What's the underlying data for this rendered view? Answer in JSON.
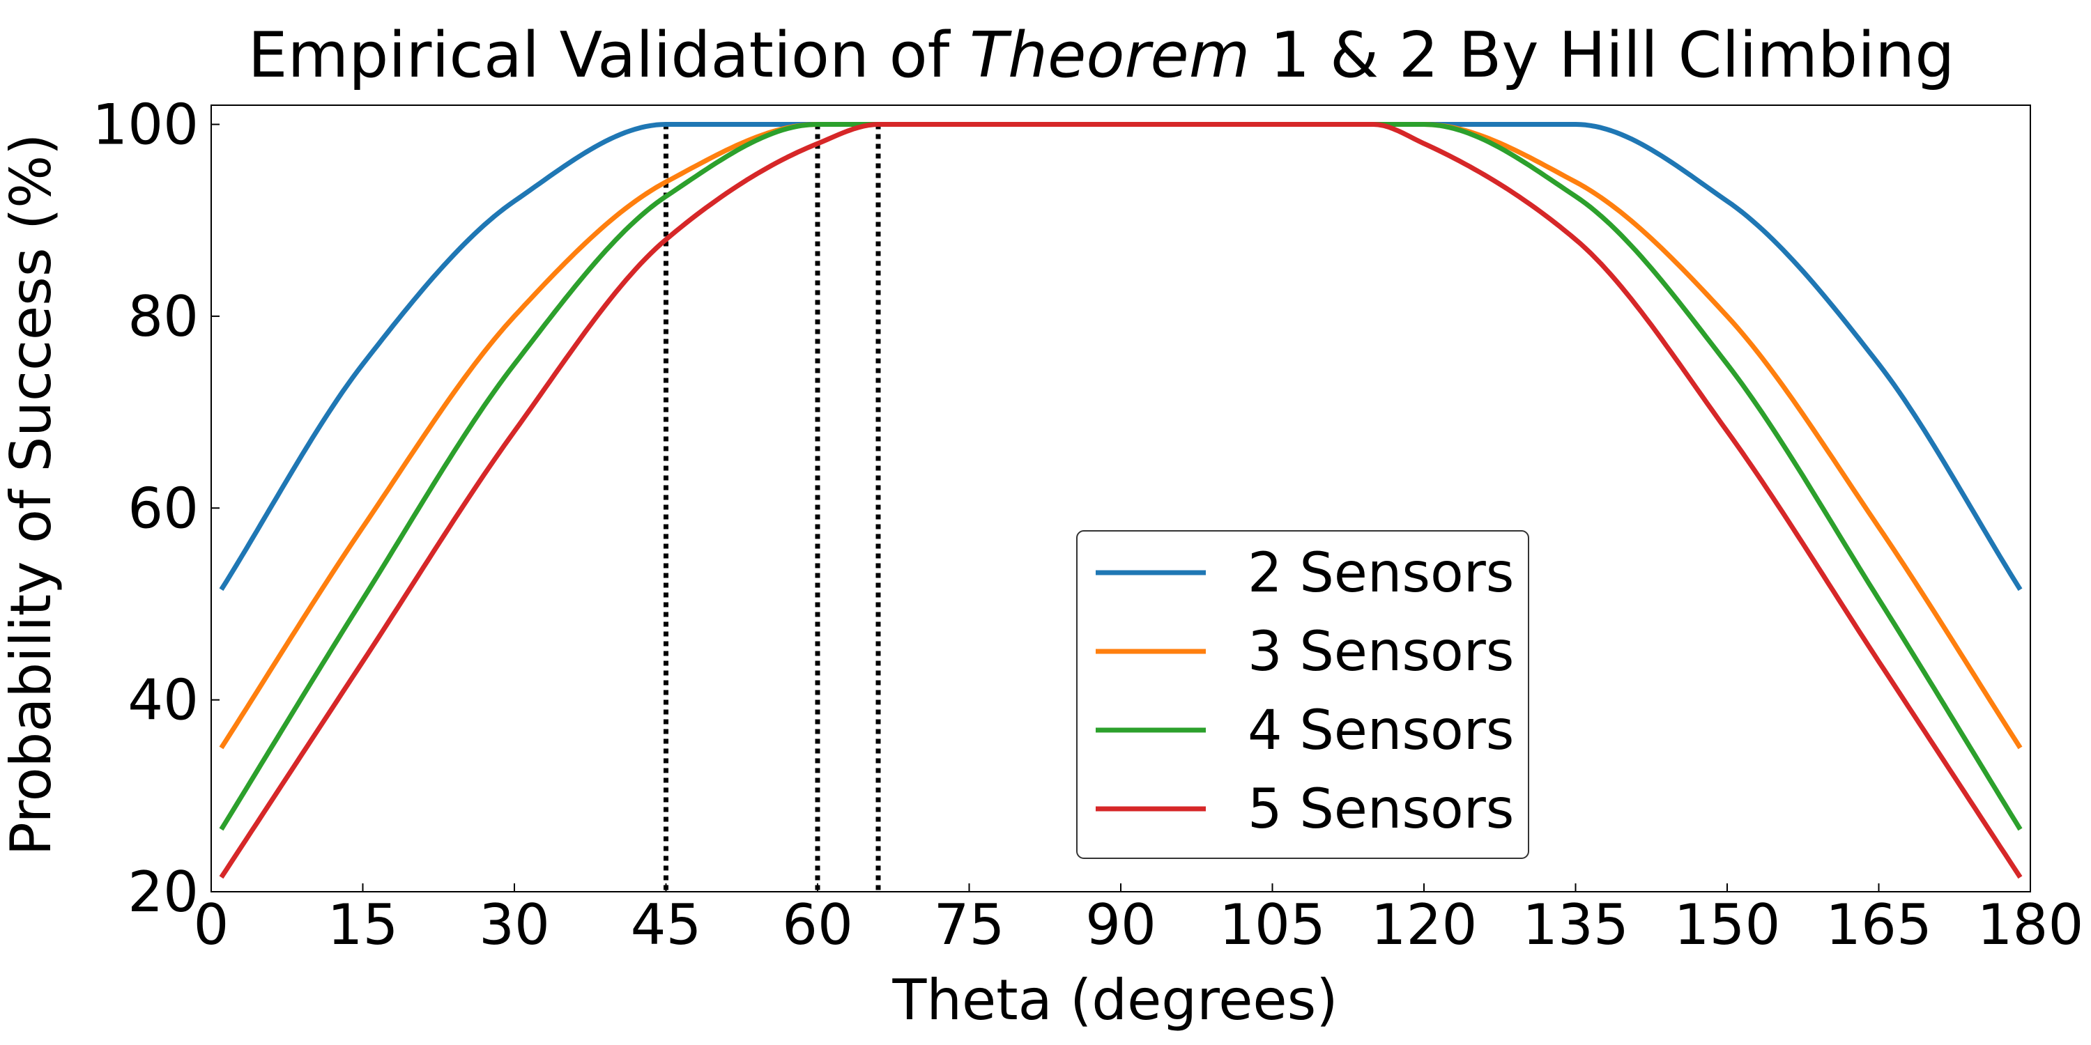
{
  "chart_data": {
    "type": "line",
    "title": {
      "before": "Empirical Validation of ",
      "italic": "Theorem",
      "after": " 1 & 2 By Hill Climbing"
    },
    "xlabel": "Theta (degrees)",
    "ylabel": "Probability of Success (%)",
    "xlim": [
      0,
      180
    ],
    "ylim": [
      20,
      102
    ],
    "xticks": [
      0,
      15,
      30,
      45,
      60,
      75,
      90,
      105,
      120,
      135,
      150,
      165,
      180
    ],
    "yticks": [
      20,
      40,
      60,
      80,
      100
    ],
    "grid": false,
    "legend_position": "lower-center",
    "vlines": [
      {
        "x": 45,
        "style": "dotted",
        "color": "#000000"
      },
      {
        "x": 60,
        "style": "dotted",
        "color": "#000000"
      },
      {
        "x": 66,
        "style": "dotted",
        "color": "#000000"
      }
    ],
    "series": [
      {
        "name": "2 Sensors",
        "color": "#1f77b4",
        "points": [
          [
            1,
            51.5
          ],
          [
            15,
            75
          ],
          [
            30,
            92
          ],
          [
            45,
            100
          ],
          [
            135,
            100
          ],
          [
            150,
            92
          ],
          [
            165,
            75
          ],
          [
            179,
            51.5
          ]
        ]
      },
      {
        "name": "3 Sensors",
        "color": "#ff7f0e",
        "points": [
          [
            1,
            35
          ],
          [
            15,
            58
          ],
          [
            30,
            80
          ],
          [
            45,
            94
          ],
          [
            60,
            100
          ],
          [
            120,
            100
          ],
          [
            135,
            94
          ],
          [
            150,
            80
          ],
          [
            165,
            58
          ],
          [
            179,
            35
          ]
        ]
      },
      {
        "name": "4 Sensors",
        "color": "#2ca02c",
        "points": [
          [
            1,
            26.5
          ],
          [
            15,
            50.5
          ],
          [
            30,
            75
          ],
          [
            45,
            92.5
          ],
          [
            60,
            100
          ],
          [
            120,
            100
          ],
          [
            135,
            92.5
          ],
          [
            150,
            75
          ],
          [
            165,
            50.5
          ],
          [
            179,
            26.5
          ]
        ]
      },
      {
        "name": "5 Sensors",
        "color": "#d62728",
        "points": [
          [
            1,
            21.5
          ],
          [
            15,
            44
          ],
          [
            30,
            68
          ],
          [
            45,
            88
          ],
          [
            60,
            98
          ],
          [
            66,
            100
          ],
          [
            115,
            100
          ],
          [
            120,
            98
          ],
          [
            135,
            88
          ],
          [
            150,
            68
          ],
          [
            165,
            44
          ],
          [
            179,
            21.5
          ]
        ]
      }
    ]
  }
}
